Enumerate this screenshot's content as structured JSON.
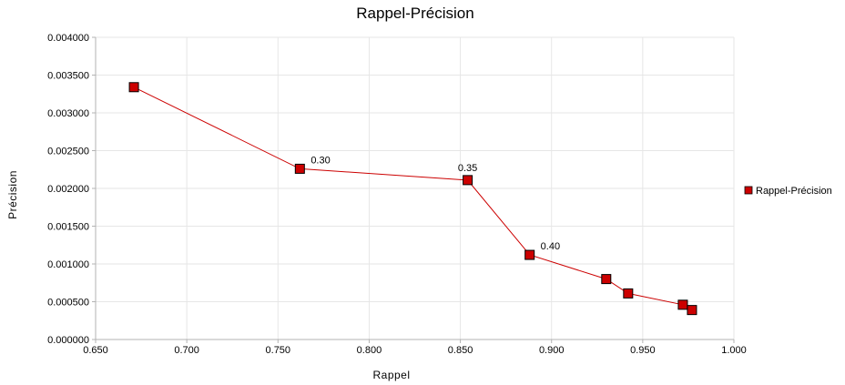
{
  "chart_data": {
    "type": "line",
    "title": "Rappel-Précision",
    "xlabel": "Rappel",
    "ylabel": "Précision",
    "xlim": [
      0.65,
      1.0
    ],
    "ylim": [
      0.0,
      0.004
    ],
    "x_ticks": [
      "0.650",
      "0.700",
      "0.750",
      "0.800",
      "0.850",
      "0.900",
      "0.950",
      "1.000"
    ],
    "x_tick_values": [
      0.65,
      0.7,
      0.75,
      0.8,
      0.85,
      0.9,
      0.95,
      1.0
    ],
    "y_ticks": [
      "0.000000",
      "0.000500",
      "0.001000",
      "0.001500",
      "0.002000",
      "0.002500",
      "0.003000",
      "0.003500",
      "0.004000"
    ],
    "y_tick_values": [
      0.0,
      0.0005,
      0.001,
      0.0015,
      0.002,
      0.0025,
      0.003,
      0.0035,
      0.004
    ],
    "grid": true,
    "legend": {
      "position": "right",
      "entries": [
        "Rappel-Précision"
      ]
    },
    "series": [
      {
        "name": "Rappel-Précision",
        "color": "#cc0000",
        "marker": "square",
        "points": [
          {
            "x": 0.671,
            "y": 0.00334,
            "label": ""
          },
          {
            "x": 0.762,
            "y": 0.00226,
            "label": "0.30"
          },
          {
            "x": 0.854,
            "y": 0.00211,
            "label": "0.35"
          },
          {
            "x": 0.888,
            "y": 0.00112,
            "label": "0.40"
          },
          {
            "x": 0.93,
            "y": 0.0008,
            "label": ""
          },
          {
            "x": 0.942,
            "y": 0.00061,
            "label": ""
          },
          {
            "x": 0.972,
            "y": 0.00046,
            "label": ""
          },
          {
            "x": 0.977,
            "y": 0.00039,
            "label": ""
          }
        ]
      }
    ]
  }
}
